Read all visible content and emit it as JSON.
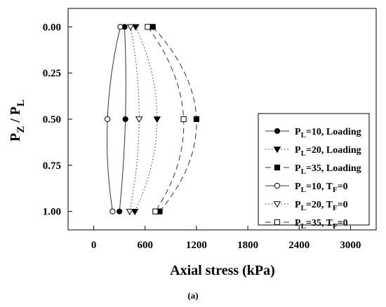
{
  "caption": "(a)",
  "chart_data": {
    "type": "line",
    "xlabel": "Axial stress (kPa)",
    "ylabel": {
      "main": "P",
      "sub1": "Z",
      "sep": " / P",
      "sub2": "L"
    },
    "xlim": [
      -300,
      3300
    ],
    "ylim": [
      1.1,
      -0.1
    ],
    "xticks": [
      0,
      600,
      1200,
      1800,
      2400,
      3000
    ],
    "yticks": [
      "0.00",
      "0.25",
      "0.50",
      "0.75",
      "1.00"
    ],
    "ytick_values": [
      0,
      0.25,
      0.5,
      0.75,
      1.0
    ],
    "legend_position": "right",
    "series": [
      {
        "label": {
          "pre": "P",
          "sub": "L",
          "mid": "=10, Loading",
          "sub2": "",
          "post": ""
        },
        "marker": "circle",
        "filled": true,
        "dash": "none",
        "points": [
          [
            360,
            0
          ],
          [
            370,
            0.5
          ],
          [
            300,
            1.0
          ]
        ]
      },
      {
        "label": {
          "pre": "P",
          "sub": "L",
          "mid": "=20, Loading",
          "sub2": "",
          "post": ""
        },
        "marker": "triangle",
        "filled": true,
        "dash": "dot",
        "points": [
          [
            490,
            0
          ],
          [
            740,
            0.5
          ],
          [
            480,
            1.0
          ]
        ]
      },
      {
        "label": {
          "pre": "P",
          "sub": "L",
          "mid": "=35, Loading",
          "sub2": "",
          "post": ""
        },
        "marker": "square",
        "filled": true,
        "dash": "dash",
        "points": [
          [
            690,
            0
          ],
          [
            1200,
            0.5
          ],
          [
            770,
            1.0
          ]
        ]
      },
      {
        "label": {
          "pre": "P",
          "sub": "L",
          "mid": "=10, T",
          "sub2": "F",
          "post": "=0"
        },
        "marker": "circle",
        "filled": false,
        "dash": "none",
        "points": [
          [
            310,
            0
          ],
          [
            160,
            0.5
          ],
          [
            220,
            1.0
          ]
        ]
      },
      {
        "label": {
          "pre": "P",
          "sub": "L",
          "mid": "=20, T",
          "sub2": "F",
          "post": "=0"
        },
        "marker": "triangle",
        "filled": false,
        "dash": "dot",
        "points": [
          [
            430,
            0
          ],
          [
            530,
            0.5
          ],
          [
            420,
            1.0
          ]
        ]
      },
      {
        "label": {
          "pre": "P",
          "sub": "L",
          "mid": "=35, T",
          "sub2": "F",
          "post": "=0"
        },
        "marker": "square",
        "filled": false,
        "dash": "dash",
        "points": [
          [
            630,
            0
          ],
          [
            1050,
            0.5
          ],
          [
            720,
            1.0
          ]
        ]
      }
    ]
  }
}
